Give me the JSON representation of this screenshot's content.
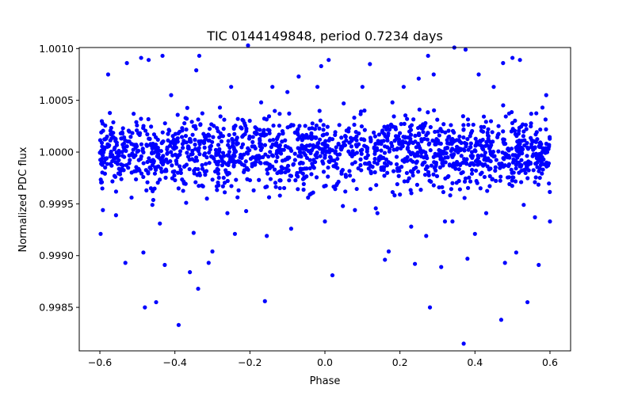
{
  "chart_data": {
    "type": "scatter",
    "title": "TIC 0144149848, period 0.7234 days",
    "xlabel": "Phase",
    "ylabel": "Normalized PDC flux",
    "xlim": [
      -0.655,
      0.655
    ],
    "ylim": [
      0.99808,
      1.00101
    ],
    "xticks": [
      -0.6,
      -0.4,
      -0.2,
      0.0,
      0.2,
      0.4,
      0.6
    ],
    "xtick_labels": [
      "−0.6",
      "−0.4",
      "−0.2",
      "0.0",
      "0.2",
      "0.4",
      "0.6"
    ],
    "yticks": [
      0.9985,
      0.999,
      0.9995,
      1.0,
      1.0005,
      1.001
    ],
    "ytick_labels": [
      "0.9985",
      "0.9990",
      "0.9995",
      "1.0000",
      "1.0005",
      "1.0010"
    ],
    "marker_color": "#0000ff",
    "grid": false,
    "legend": "none",
    "series": [
      {
        "name": "flux",
        "points": [
          [
            -0.598,
            0.99921
          ],
          [
            -0.592,
            0.99944
          ],
          [
            -0.578,
            1.00075
          ],
          [
            -0.557,
            0.99939
          ],
          [
            -0.532,
            0.99893
          ],
          [
            -0.528,
            1.00086
          ],
          [
            -0.51,
            1.00037
          ],
          [
            -0.49,
            1.00091
          ],
          [
            -0.484,
            0.99903
          ],
          [
            -0.48,
            0.9985
          ],
          [
            -0.47,
            1.00089
          ],
          [
            -0.46,
            0.99949
          ],
          [
            -0.45,
            0.99855
          ],
          [
            -0.44,
            0.99931
          ],
          [
            -0.433,
            1.00093
          ],
          [
            -0.427,
            0.99891
          ],
          [
            -0.41,
            1.00055
          ],
          [
            -0.39,
            0.99833
          ],
          [
            -0.37,
            0.99951
          ],
          [
            -0.36,
            0.99884
          ],
          [
            -0.35,
            0.99922
          ],
          [
            -0.343,
            1.00079
          ],
          [
            -0.338,
            0.99868
          ],
          [
            -0.335,
            1.00093
          ],
          [
            -0.31,
            0.99893
          ],
          [
            -0.3,
            0.99904
          ],
          [
            -0.28,
            1.00043
          ],
          [
            -0.26,
            0.99941
          ],
          [
            -0.25,
            1.00063
          ],
          [
            -0.24,
            0.99921
          ],
          [
            -0.21,
            0.99943
          ],
          [
            -0.205,
            1.00103
          ],
          [
            -0.19,
            0.99963
          ],
          [
            -0.17,
            1.00048
          ],
          [
            -0.16,
            0.99856
          ],
          [
            -0.155,
            0.99919
          ],
          [
            -0.14,
            1.00063
          ],
          [
            -0.12,
            0.99958
          ],
          [
            -0.1,
            1.00058
          ],
          [
            -0.09,
            0.99926
          ],
          [
            -0.07,
            1.00073
          ],
          [
            -0.04,
            0.99959
          ],
          [
            -0.02,
            1.00063
          ],
          [
            -0.01,
            1.00083
          ],
          [
            0.0,
            0.99933
          ],
          [
            0.01,
            1.00089
          ],
          [
            0.02,
            0.99881
          ],
          [
            0.05,
            1.00047
          ],
          [
            0.08,
            0.99944
          ],
          [
            0.1,
            1.00063
          ],
          [
            0.12,
            1.00085
          ],
          [
            0.14,
            0.99941
          ],
          [
            0.16,
            0.99896
          ],
          [
            0.17,
            0.99904
          ],
          [
            0.18,
            1.00048
          ],
          [
            0.2,
            0.99959
          ],
          [
            0.21,
            1.00063
          ],
          [
            0.23,
            0.99928
          ],
          [
            0.24,
            0.99892
          ],
          [
            0.25,
            1.00071
          ],
          [
            0.27,
            0.99919
          ],
          [
            0.275,
            1.00093
          ],
          [
            0.28,
            0.9985
          ],
          [
            0.29,
            1.00075
          ],
          [
            0.31,
            0.99889
          ],
          [
            0.32,
            0.99933
          ],
          [
            0.34,
            0.99933
          ],
          [
            0.345,
            1.00101
          ],
          [
            0.36,
            0.99964
          ],
          [
            0.37,
            0.99815
          ],
          [
            0.375,
            1.00099
          ],
          [
            0.38,
            0.99897
          ],
          [
            0.4,
            0.99921
          ],
          [
            0.41,
            1.00075
          ],
          [
            0.43,
            0.99941
          ],
          [
            0.45,
            1.00063
          ],
          [
            0.47,
            0.99838
          ],
          [
            0.475,
            1.00086
          ],
          [
            0.48,
            0.99893
          ],
          [
            0.5,
            1.00091
          ],
          [
            0.51,
            0.99903
          ],
          [
            0.52,
            1.00089
          ],
          [
            0.53,
            0.99949
          ],
          [
            0.54,
            0.99855
          ],
          [
            0.55,
            1.00037
          ],
          [
            0.56,
            0.99937
          ],
          [
            0.57,
            0.99891
          ],
          [
            0.58,
            1.00043
          ],
          [
            0.59,
            1.00055
          ],
          [
            0.6,
            0.99933
          ]
        ],
        "dense_band": {
          "x_range": [
            -0.6,
            0.6
          ],
          "y_center": 1.0,
          "y_sigma": 0.00017,
          "count": 1600
        }
      }
    ]
  }
}
